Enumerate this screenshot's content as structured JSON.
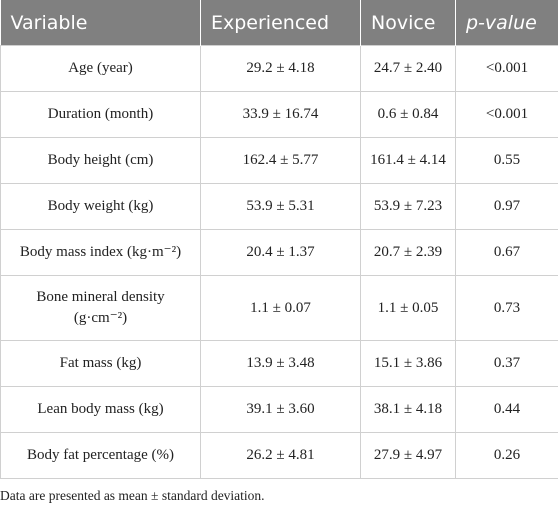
{
  "table": {
    "header": [
      "Variable",
      "Experienced",
      "Novice",
      "p-value"
    ],
    "rows": [
      [
        [
          "Age (year)"
        ],
        "29.2 ± 4.18",
        "24.7 ± 2.40",
        "<0.001"
      ],
      [
        [
          "Duration (month)"
        ],
        "33.9 ± 16.74",
        "0.6 ± 0.84",
        "<0.001"
      ],
      [
        [
          "Body height (cm)"
        ],
        "162.4 ± 5.77",
        "161.4 ± 4.14",
        "0.55"
      ],
      [
        [
          "Body weight (kg)"
        ],
        "53.9 ± 5.31",
        "53.9 ± 7.23",
        "0.97"
      ],
      [
        [
          "Body mass index (kg·m⁻²)"
        ],
        "20.4 ± 1.37",
        "20.7 ± 2.39",
        "0.67"
      ],
      [
        [
          "Bone mineral density",
          "(g·cm⁻²)"
        ],
        "1.1 ± 0.07",
        "1.1 ± 0.05",
        "0.73"
      ],
      [
        [
          "Fat mass (kg)"
        ],
        "13.9 ± 3.48",
        "15.1 ± 3.86",
        "0.37"
      ],
      [
        [
          "Lean body mass (kg)"
        ],
        "39.1 ± 3.60",
        "38.1 ± 4.18",
        "0.44"
      ],
      [
        [
          "Body fat percentage (%)"
        ],
        "26.2 ± 4.81",
        "27.9 ± 4.97",
        "0.26"
      ]
    ]
  },
  "note": "Data are presented as mean ± standard deviation."
}
